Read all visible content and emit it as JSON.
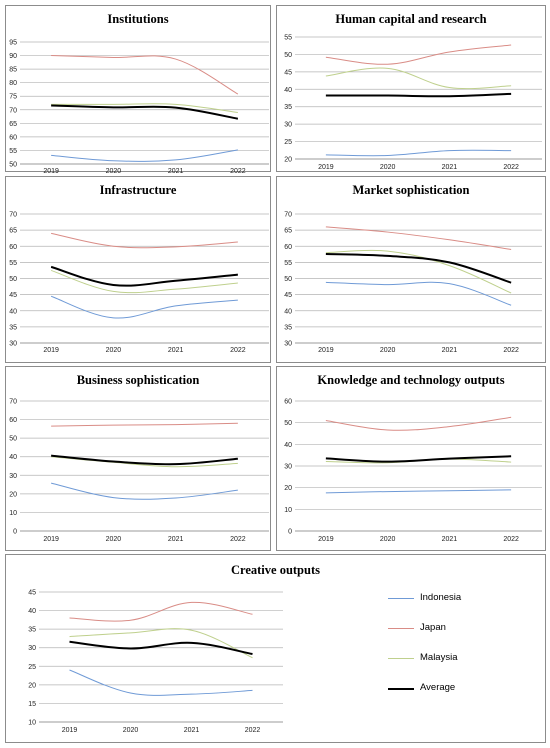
{
  "colors": {
    "Indonesia": "#6f9ad6",
    "Japan": "#d98c86",
    "Malaysia": "#bfd08d",
    "Average": "#000000"
  },
  "legend": {
    "items": [
      "Indonesia",
      "Japan",
      "Malaysia",
      "Average"
    ]
  },
  "chart_data": [
    {
      "id": "institutions",
      "type": "line",
      "title": "Institutions",
      "categories": [
        "2019",
        "2020",
        "2021",
        "2022"
      ],
      "ylim": [
        50,
        95
      ],
      "yticks": [
        50,
        55,
        60,
        65,
        70,
        75,
        80,
        85,
        90,
        95
      ],
      "series": [
        {
          "name": "Indonesia",
          "values": [
            53.2,
            51.2,
            51.5,
            55.2
          ]
        },
        {
          "name": "Japan",
          "values": [
            90,
            89.3,
            88.7,
            75.8
          ]
        },
        {
          "name": "Malaysia",
          "values": [
            72,
            72,
            72,
            69
          ]
        },
        {
          "name": "Average",
          "values": [
            71.6,
            70.9,
            70.8,
            66.7
          ]
        }
      ]
    },
    {
      "id": "human-capital",
      "type": "line",
      "title": "Human capital and research",
      "categories": [
        "2019",
        "2020",
        "2021",
        "2022"
      ],
      "ylim": [
        20,
        55
      ],
      "yticks": [
        20,
        25,
        30,
        35,
        40,
        45,
        50,
        55
      ],
      "series": [
        {
          "name": "Indonesia",
          "values": [
            21.2,
            21,
            22.4,
            22.4
          ]
        },
        {
          "name": "Japan",
          "values": [
            49.2,
            47.2,
            50.7,
            52.7
          ]
        },
        {
          "name": "Malaysia",
          "values": [
            43.8,
            46,
            40.5,
            41
          ]
        },
        {
          "name": "Average",
          "values": [
            38.2,
            38.2,
            38,
            38.7
          ]
        }
      ]
    },
    {
      "id": "infrastructure",
      "type": "line",
      "title": "Infrastructure",
      "categories": [
        "2019",
        "2020",
        "2021",
        "2022"
      ],
      "ylim": [
        30,
        70
      ],
      "yticks": [
        30,
        35,
        40,
        45,
        50,
        55,
        60,
        65,
        70
      ],
      "series": [
        {
          "name": "Indonesia",
          "values": [
            44.5,
            37.8,
            41.5,
            43.3
          ]
        },
        {
          "name": "Japan",
          "values": [
            64,
            60,
            59.8,
            61.3
          ]
        },
        {
          "name": "Malaysia",
          "values": [
            52.5,
            46,
            46.7,
            48.6
          ]
        },
        {
          "name": "Average",
          "values": [
            53.6,
            48,
            49.3,
            51.2
          ]
        }
      ]
    },
    {
      "id": "market-sophistication",
      "type": "line",
      "title": "Market sophistication",
      "categories": [
        "2019",
        "2020",
        "2021",
        "2022"
      ],
      "ylim": [
        30,
        70
      ],
      "yticks": [
        30,
        35,
        40,
        45,
        50,
        55,
        60,
        65,
        70
      ],
      "series": [
        {
          "name": "Indonesia",
          "values": [
            48.8,
            48.1,
            48.4,
            41.7
          ]
        },
        {
          "name": "Japan",
          "values": [
            66,
            64.4,
            62,
            59
          ]
        },
        {
          "name": "Malaysia",
          "values": [
            58,
            58.5,
            54,
            45.5
          ]
        },
        {
          "name": "Average",
          "values": [
            57.6,
            57,
            55,
            48.7
          ]
        }
      ]
    },
    {
      "id": "business-sophistication",
      "type": "line",
      "title": "Business sophistication",
      "categories": [
        "2019",
        "2020",
        "2021",
        "2022"
      ],
      "ylim": [
        0,
        70
      ],
      "yticks": [
        0,
        10,
        20,
        30,
        40,
        50,
        60,
        70
      ],
      "series": [
        {
          "name": "Indonesia",
          "values": [
            25.8,
            18,
            17.8,
            22
          ]
        },
        {
          "name": "Japan",
          "values": [
            56.5,
            57,
            57.3,
            58
          ]
        },
        {
          "name": "Malaysia",
          "values": [
            40,
            37,
            34.6,
            36.4
          ]
        },
        {
          "name": "Average",
          "values": [
            40.6,
            37.4,
            36,
            38.9
          ]
        }
      ]
    },
    {
      "id": "knowledge-technology",
      "type": "line",
      "title": "Knowledge and technology outputs",
      "categories": [
        "2019",
        "2020",
        "2021",
        "2022"
      ],
      "ylim": [
        0,
        60
      ],
      "yticks": [
        0,
        10,
        20,
        30,
        40,
        50,
        60
      ],
      "series": [
        {
          "name": "Indonesia",
          "values": [
            17.6,
            18.2,
            18.6,
            19
          ]
        },
        {
          "name": "Japan",
          "values": [
            51,
            46.6,
            48.2,
            52.5
          ]
        },
        {
          "name": "Malaysia",
          "values": [
            32.1,
            31.5,
            33.2,
            31.8
          ]
        },
        {
          "name": "Average",
          "values": [
            33.5,
            32,
            33.4,
            34.5
          ]
        }
      ]
    },
    {
      "id": "creative-outputs",
      "type": "line",
      "title": "Creative outputs",
      "categories": [
        "2019",
        "2020",
        "2021",
        "2022"
      ],
      "ylim": [
        10,
        45
      ],
      "yticks": [
        10,
        15,
        20,
        25,
        30,
        35,
        40,
        45
      ],
      "series": [
        {
          "name": "Indonesia",
          "values": [
            24,
            17.8,
            17.5,
            18.5
          ]
        },
        {
          "name": "Japan",
          "values": [
            38,
            37.4,
            42.2,
            39
          ]
        },
        {
          "name": "Malaysia",
          "values": [
            33,
            34,
            34.7,
            27.3
          ]
        },
        {
          "name": "Average",
          "values": [
            31.6,
            29.8,
            31.3,
            28.3
          ]
        }
      ]
    }
  ]
}
